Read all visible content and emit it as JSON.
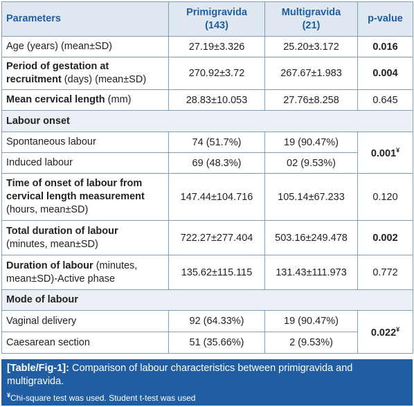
{
  "table": {
    "headers": {
      "parameters": "Parameters",
      "group1_name": "Primigravida",
      "group1_n": "(143)",
      "group2_name": "Multigravida",
      "group2_n": "(21)",
      "pvalue": "p-value"
    },
    "rows": {
      "age": {
        "label": "Age (years) (mean±SD)",
        "g1": "27.19±3.326",
        "g2": "25.20±3.172",
        "p": "0.016"
      },
      "gestation": {
        "label_bold": "Period of gestation at recruitment",
        "label_rest": " (days) (mean±SD)",
        "g1": "270.92±3.72",
        "g2": "267.67±1.983",
        "p": "0.004"
      },
      "cervical": {
        "label_bold": "Mean cervical length",
        "label_rest": " (mm)",
        "g1": "28.83±10.053",
        "g2": "27.76±8.258",
        "p": "0.645"
      },
      "onset_section": "Labour onset",
      "spontaneous": {
        "label": "Spontaneous labour",
        "g1": "74 (51.7%)",
        "g2": "19 (90.47%)"
      },
      "induced": {
        "label": "Induced labour",
        "g1": "69 (48.3%)",
        "g2": "02 (9.53%)"
      },
      "onset_p": "0.001",
      "onset_p_sup": "¥",
      "time_onset": {
        "label_bold": "Time of onset of labour from cervical length measurement",
        "label_rest": "(hours, mean±SD)",
        "g1": "147.44±104.716",
        "g2": "105.14±67.233",
        "p": "0.120"
      },
      "total_duration": {
        "label_bold": "Total duration of labour",
        "label_rest": "(minutes, mean±SD)",
        "g1": "722.27±277.404",
        "g2": "503.16±249.478",
        "p": "0.002"
      },
      "active_duration": {
        "label_bold": "Duration of labour",
        "label_rest": " (minutes, mean±SD)-Active phase",
        "g1": "135.62±115.115",
        "g2": "131.43±111.973",
        "p": "0.772"
      },
      "mode_section": "Mode of labour",
      "vaginal": {
        "label": "Vaginal delivery",
        "g1": "92 (64.33%)",
        "g2": "19 (90.47%)"
      },
      "caesarean": {
        "label": "Caesarean section",
        "g1": "51 (35.66%)",
        "g2": "2 (9.53%)"
      },
      "mode_p": "0.022",
      "mode_p_sup": "¥"
    }
  },
  "caption": {
    "label": "[Table/Fig-1]:",
    "text": " Comparison of labour characteristics between primigravida and multigravida.",
    "note_mark": "¥",
    "note": "Chi-square test was used. Student t-test was used"
  },
  "colors": {
    "accent": "#1f5ea3",
    "header_bg": "#dfe8f1",
    "border": "#7f9fb7"
  }
}
